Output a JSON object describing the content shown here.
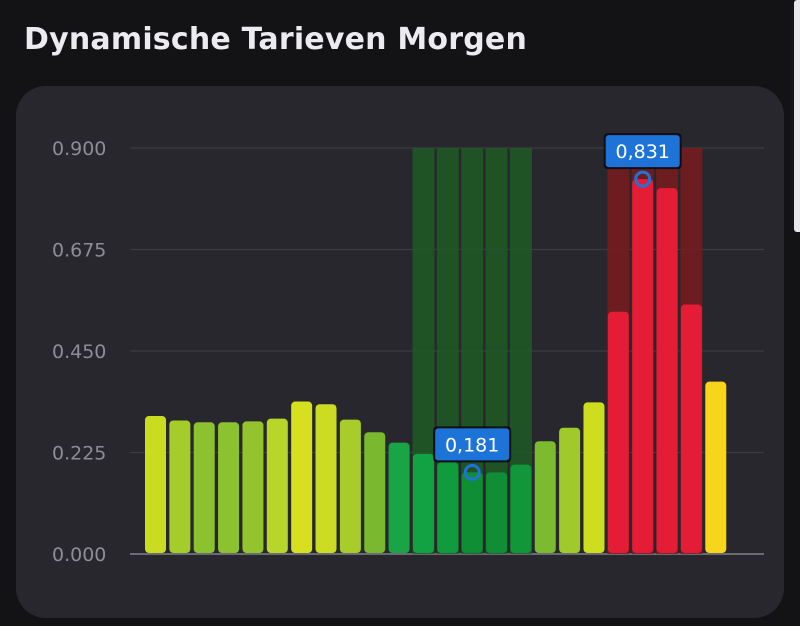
{
  "header": {
    "title": "Dynamische Tarieven Morgen"
  },
  "chart_data": {
    "type": "bar",
    "title": "",
    "xlabel": "",
    "ylabel": "",
    "ylim": [
      0,
      0.9
    ],
    "yticks": [
      {
        "value": 0,
        "label": "0.000"
      },
      {
        "value": 0.225,
        "label": "0.225"
      },
      {
        "value": 0.45,
        "label": "0.450"
      },
      {
        "value": 0.675,
        "label": "0.675"
      },
      {
        "value": 0.9,
        "label": "0.900"
      }
    ],
    "grid": true,
    "values": [
      0.306,
      0.296,
      0.292,
      0.292,
      0.294,
      0.3,
      0.338,
      0.332,
      0.298,
      0.27,
      0.247,
      0.222,
      0.203,
      0.181,
      0.181,
      0.198,
      0.25,
      0.28,
      0.336,
      0.537,
      0.831,
      0.811,
      0.553,
      0.382
    ],
    "colors": [
      "#c9dc1f",
      "#a4cc2b",
      "#8cc22f",
      "#8cc22f",
      "#93c42e",
      "#b8d62a",
      "#d6e01f",
      "#cbdc22",
      "#a8cd2a",
      "#7ab92f",
      "#19a545",
      "#12a243",
      "#109c3d",
      "#0f8e35",
      "#0f8e35",
      "#11963a",
      "#7cbb2f",
      "#a0ca2b",
      "#cfdd1f",
      "#e41c35",
      "#e41c35",
      "#e41c35",
      "#e41c35",
      "#f6d51b"
    ],
    "highlights": [
      {
        "name": "cheapest-window",
        "from_index": 11,
        "to_index": 15,
        "top_value": 0.9,
        "color": "#1f5a25"
      },
      {
        "name": "most-expensive-window",
        "from_index": 19,
        "to_index": 22,
        "top_value": 0.9,
        "color": "#7a1b1f"
      }
    ],
    "annotations": [
      {
        "name": "min-marker",
        "index": 13,
        "value": 0.181,
        "label": "0,181"
      },
      {
        "name": "max-marker",
        "index": 20,
        "value": 0.831,
        "label": "0,831"
      }
    ],
    "badge_color": "#1e73d9"
  }
}
